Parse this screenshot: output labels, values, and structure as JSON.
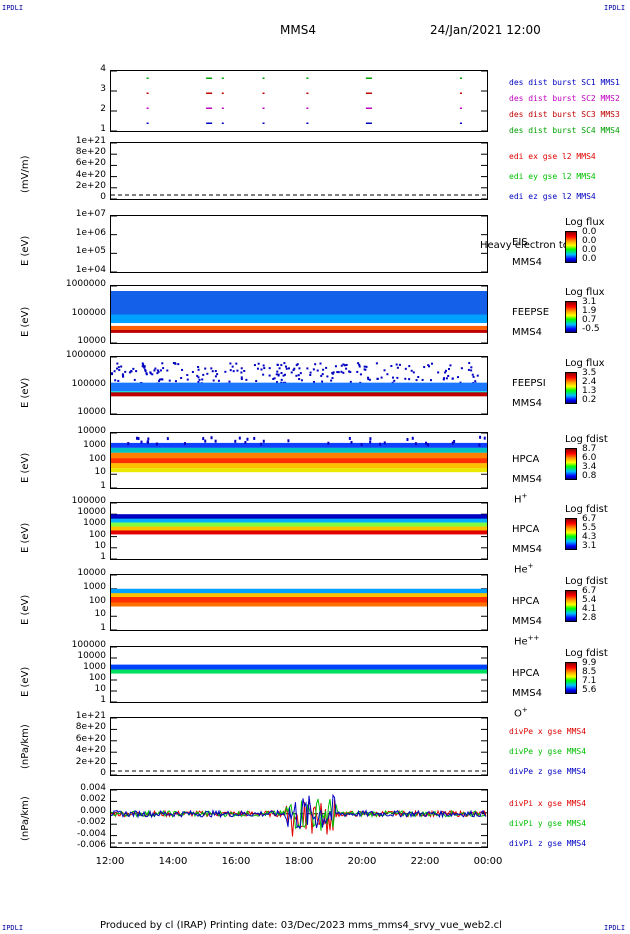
{
  "corners": {
    "tl": "IPDLI",
    "tr": "IPDLI",
    "bl": "IPDLI",
    "br": "IPDLI"
  },
  "header": {
    "spacecraft": "MMS4",
    "date": "24/Jan/2021 12:00"
  },
  "footer": {
    "text": "Produced by cl (IRAP)   Printing date: 03/Dec/2023   mms_mms4_srvy_vue_web2.cl"
  },
  "colors": {
    "mms1": "#0000c0",
    "mms2": "#c000c0",
    "mms3": "#c00000",
    "mms4": "#00a000",
    "x": "#e00000",
    "y": "#00c000",
    "z": "#0000c0"
  },
  "chart_data": [
    {
      "type": "scatter",
      "id": "burst",
      "yticks": [
        "4",
        "3",
        "2",
        "1"
      ],
      "ylim": [
        0.5,
        4.5
      ],
      "legend": [
        "des dist burst SC1 MMS1",
        "des dist burst SC2 MMS2",
        "des dist burst SC3 MMS3",
        "des dist burst SC4 MMS4"
      ],
      "series": [
        {
          "name": "des dist burst SC4 MMS4",
          "level": 4,
          "times": [
            13.2,
            15.1,
            15.6,
            16.9,
            18.3,
            20.2,
            23.2
          ]
        },
        {
          "name": "des dist burst SC3 MMS3",
          "level": 3,
          "times": [
            13.2,
            15.1,
            15.6,
            16.9,
            18.3,
            20.2,
            23.2
          ]
        },
        {
          "name": "des dist burst SC2 MMS2",
          "level": 2,
          "times": [
            13.2,
            15.1,
            15.6,
            16.9,
            18.3,
            20.2,
            23.2
          ]
        },
        {
          "name": "des dist burst SC1 MMS1",
          "level": 1,
          "times": [
            13.2,
            15.1,
            15.6,
            16.9,
            18.3,
            20.2,
            23.2
          ]
        }
      ]
    },
    {
      "type": "line",
      "id": "edi",
      "ylabel": "(mV/m)",
      "yticks": [
        "1e+21",
        "8e+20",
        "6e+20",
        "4e+20",
        "2e+20",
        "0"
      ],
      "legend": [
        "edi ex gse l2 MMS4",
        "edi ey gse l2 MMS4",
        "edi ez gse l2 MMS4"
      ]
    },
    {
      "type": "heatmap",
      "id": "eis",
      "ylabel": "E (eV)",
      "yticks": [
        "1e+07",
        "1e+06",
        "1e+05",
        "1e+04"
      ],
      "side": [
        "EIS",
        "MMS4"
      ],
      "overlay": "Heavy electron to",
      "colorbar": {
        "title": "Log flux",
        "values": [
          "0.0",
          "0.0",
          "0.0",
          "0.0"
        ]
      }
    },
    {
      "type": "heatmap",
      "id": "feepse",
      "ylabel": "E (eV)",
      "yticks": [
        "1000000",
        "100000",
        "10000"
      ],
      "side": [
        "FEEPSE",
        "MMS4"
      ],
      "colorbar": {
        "title": "Log flux",
        "values": [
          "3.1",
          "1.9",
          "0.7",
          "-0.5"
        ]
      }
    },
    {
      "type": "heatmap",
      "id": "feepsi",
      "ylabel": "E (eV)",
      "yticks": [
        "1000000",
        "100000",
        "10000"
      ],
      "side": [
        "FEEPSI",
        "MMS4"
      ],
      "colorbar": {
        "title": "Log flux",
        "values": [
          "3.5",
          "2.4",
          "1.3",
          "0.2"
        ]
      }
    },
    {
      "type": "heatmap",
      "id": "hpca_h",
      "ylabel": "E (eV)",
      "yticks": [
        "10000",
        "1000",
        "100",
        "10",
        "1"
      ],
      "side": [
        "HPCA",
        "MMS4"
      ],
      "species": "H",
      "sup": "+",
      "colorbar": {
        "title": "Log fdist",
        "values": [
          "8.7",
          "6.0",
          "3.4",
          "0.8"
        ]
      }
    },
    {
      "type": "heatmap",
      "id": "hpca_he",
      "ylabel": "E (eV)",
      "yticks": [
        "100000",
        "10000",
        "1000",
        "100",
        "10",
        "1"
      ],
      "side": [
        "HPCA",
        "MMS4"
      ],
      "species": "He",
      "sup": "+",
      "colorbar": {
        "title": "Log fdist",
        "values": [
          "6.7",
          "5.5",
          "4.3",
          "3.1"
        ]
      }
    },
    {
      "type": "heatmap",
      "id": "hpca_he2",
      "ylabel": "E (eV)",
      "yticks": [
        "10000",
        "1000",
        "100",
        "10",
        "1"
      ],
      "side": [
        "HPCA",
        "MMS4"
      ],
      "species": "He",
      "sup": "++",
      "colorbar": {
        "title": "Log fdist",
        "values": [
          "6.7",
          "5.4",
          "4.1",
          "2.8"
        ]
      }
    },
    {
      "type": "heatmap",
      "id": "hpca_o",
      "ylabel": "E (eV)",
      "yticks": [
        "100000",
        "10000",
        "1000",
        "100",
        "10",
        "1"
      ],
      "side": [
        "HPCA",
        "MMS4"
      ],
      "species": "O",
      "sup": "+",
      "colorbar": {
        "title": "Log fdist",
        "values": [
          "9.9",
          "8.5",
          "7.1",
          "5.6"
        ]
      }
    },
    {
      "type": "line",
      "id": "divpe",
      "ylabel": "(nPa/km)",
      "yticks": [
        "1e+21",
        "8e+20",
        "6e+20",
        "4e+20",
        "2e+20",
        "0"
      ],
      "legend": [
        "divPe x gse MMS4",
        "divPe y gse MMS4",
        "divPe z gse MMS4"
      ]
    },
    {
      "type": "line",
      "id": "divpi",
      "ylabel": "(nPa/km)",
      "yticks": [
        "0.004",
        "0.002",
        "0.000",
        "-0.002",
        "-0.004",
        "-0.006"
      ],
      "ylim": [
        -0.007,
        0.005
      ],
      "legend": [
        "divPi x gse MMS4",
        "divPi y gse MMS4",
        "divPi z gse MMS4"
      ],
      "xticks": [
        "12:00",
        "14:00",
        "16:00",
        "18:00",
        "20:00",
        "22:00",
        "00:00"
      ],
      "xlim": [
        12,
        24
      ]
    }
  ]
}
